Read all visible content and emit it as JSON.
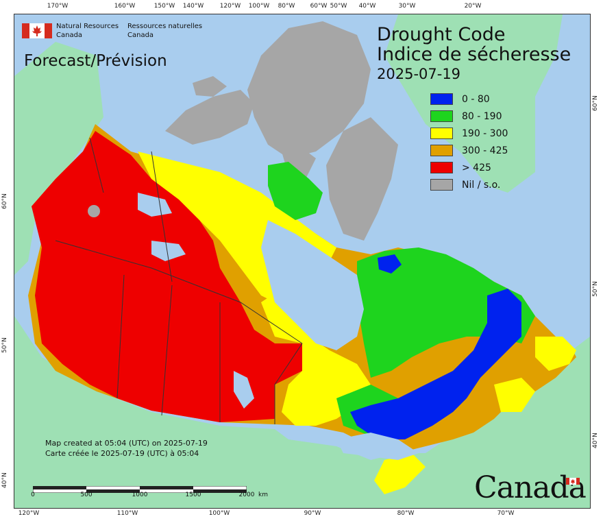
{
  "agency": {
    "name_en": [
      "Natural Resources",
      "Canada"
    ],
    "name_fr": [
      "Ressources naturelles",
      "Canada"
    ]
  },
  "title": {
    "en": "Drought Code",
    "fr": "Indice de sécheresse",
    "date": "2025-07-19"
  },
  "subtitle": "Forecast/Prévision",
  "legend": [
    {
      "label": "0 - 80",
      "color": "#0022ee"
    },
    {
      "label": "80 - 190",
      "color": "#1ed41e"
    },
    {
      "label": "190 - 300",
      "color": "#ffff00"
    },
    {
      "label": "300 - 425",
      "color": "#e0a000"
    },
    {
      "label": "> 425",
      "color": "#ee0000"
    },
    {
      "label": "Nil / s.o.",
      "color": "#a6a6a6"
    }
  ],
  "created": {
    "en": "Map created at 05:04 (UTC) on 2025-07-19",
    "fr": "Carte créée le 2025-07-19 (UTC) à 05:04"
  },
  "scale_bar": {
    "labels": [
      "0",
      "500",
      "1000",
      "1500",
      "2000"
    ],
    "unit": "km"
  },
  "wordmark": "Canada",
  "graticule": {
    "top": [
      "170°W",
      "160°W",
      "150°W",
      "140°W",
      "120°W",
      "100°W",
      "80°W",
      "60°W",
      "50°W",
      "40°W",
      "30°W",
      "20°W"
    ],
    "bottom": [
      "120°W",
      "110°W",
      "100°W",
      "90°W",
      "80°W",
      "70°W"
    ],
    "left": [
      "60°N",
      "50°N",
      "40°N"
    ],
    "right": [
      "60°N",
      "50°N",
      "40°N"
    ]
  },
  "colors": {
    "ocean": "#a9cdee",
    "land_other": "#9ee0b4",
    "nil": "#a6a6a6",
    "boundary": "#333333",
    "flag_red": "#d52b1e"
  }
}
